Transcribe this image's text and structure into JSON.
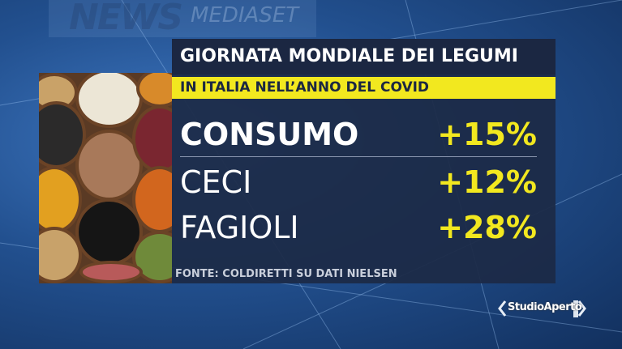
{
  "watermark": {
    "news": "NEWS",
    "brand": "MEDIASET"
  },
  "title": "GIORNATA MONDIALE DEI LEGUMI",
  "subtitle": "IN ITALIA NELL’ANNO DEL COVID",
  "rows": [
    {
      "label": "CONSUMO",
      "value": "+15%"
    },
    {
      "label": "CECI",
      "value": "+12%"
    },
    {
      "label": "FAGIOLI",
      "value": "+28%"
    }
  ],
  "source": "FONTE: COLDIRETTI SU DATI NIELSEN",
  "logo": "StudioAperto",
  "colors": {
    "accent": "#f2e81f",
    "panel": "#1b2742"
  }
}
